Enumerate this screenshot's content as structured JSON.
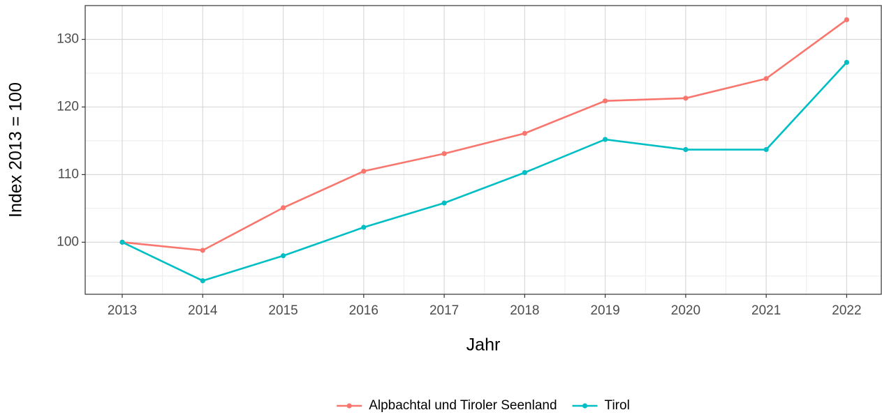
{
  "chart_data": {
    "type": "line",
    "x_label": "Jahr",
    "y_label": "Index  2013  = 100",
    "x": [
      2013,
      2014,
      2015,
      2016,
      2017,
      2018,
      2019,
      2020,
      2021,
      2022
    ],
    "series": [
      {
        "name": "Alpbachtal und Tiroler Seenland",
        "color": "#F8766D",
        "values": [
          100,
          98.8,
          105.1,
          110.5,
          113.1,
          116.1,
          120.9,
          121.3,
          124.2,
          132.9
        ]
      },
      {
        "name": "Tirol",
        "color": "#00BFC4",
        "values": [
          100,
          94.3,
          98.0,
          102.2,
          105.8,
          110.3,
          115.2,
          113.7,
          113.7,
          126.6
        ]
      }
    ],
    "xlim": [
      2012.54,
      2022.43
    ],
    "xticks": [
      2013,
      2014,
      2015,
      2016,
      2017,
      2018,
      2019,
      2020,
      2021,
      2022
    ],
    "ylim": [
      92.3,
      135
    ],
    "yticks": [
      100,
      110,
      120,
      130
    ],
    "grid": true,
    "minor_grid": true,
    "legend": "bottom"
  }
}
